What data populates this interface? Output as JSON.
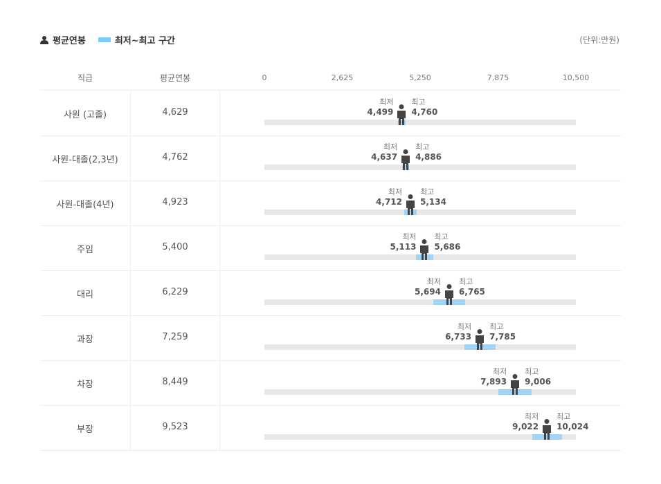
{
  "legend": {
    "avg_label": "평균연봉",
    "range_label": "최저~최고 구간",
    "range_color": "#7ecbf7"
  },
  "unit": "(단위:만원)",
  "headers": {
    "rank": "직급",
    "avg": "평균연봉"
  },
  "chart_data": {
    "type": "range-bar",
    "xlim": [
      0,
      10500
    ],
    "ticks": [
      "0",
      "2,625",
      "5,250",
      "7,875",
      "10,500"
    ],
    "min_label": "최저",
    "max_label": "최고",
    "rows": [
      {
        "rank": "사원 (고졸)",
        "avg": "4,629",
        "min": "4,499",
        "max": "4,760"
      },
      {
        "rank": "사원-대졸(2,3년)",
        "avg": "4,762",
        "min": "4,637",
        "max": "4,886"
      },
      {
        "rank": "사원-대졸(4년)",
        "avg": "4,923",
        "min": "4,712",
        "max": "5,134"
      },
      {
        "rank": "주임",
        "avg": "5,400",
        "min": "5,113",
        "max": "5,686"
      },
      {
        "rank": "대리",
        "avg": "6,229",
        "min": "5,694",
        "max": "6,765"
      },
      {
        "rank": "과장",
        "avg": "7,259",
        "min": "6,733",
        "max": "7,785"
      },
      {
        "rank": "차장",
        "avg": "8,449",
        "min": "7,893",
        "max": "9,006"
      },
      {
        "rank": "부장",
        "avg": "9,523",
        "min": "9,022",
        "max": "10,024"
      }
    ]
  }
}
